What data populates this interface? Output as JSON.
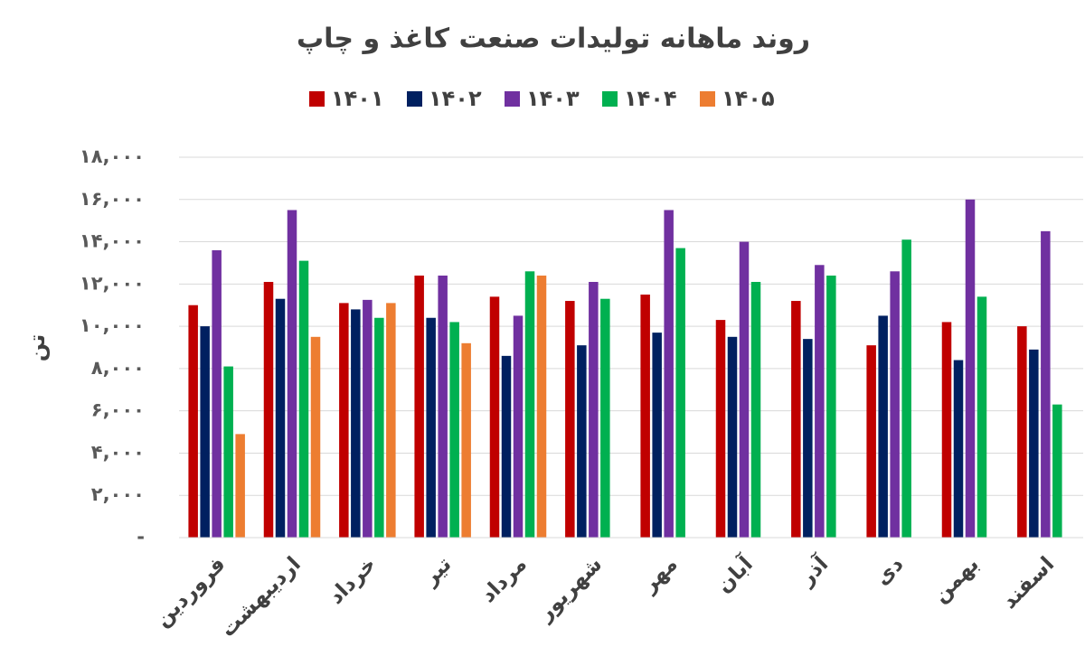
{
  "chart_data": {
    "type": "bar",
    "title": "روند ماهانه تولیدات صنعت کاغذ و چاپ",
    "y_label": "تن",
    "categories": [
      "فروردین",
      "اردیبهشت",
      "خرداد",
      "تیر",
      "مرداد",
      "شهریور",
      "مهر",
      "آبان",
      "آذر",
      "دی",
      "بهمن",
      "اسفند"
    ],
    "series": [
      {
        "name": "۱۴۰۱",
        "color": "#c00000",
        "values": [
          11000,
          12100,
          11100,
          12400,
          11400,
          11200,
          11500,
          10300,
          11200,
          9100,
          10200,
          10000
        ]
      },
      {
        "name": "۱۴۰۲",
        "color": "#002060",
        "values": [
          10000,
          11300,
          10800,
          10400,
          8600,
          9100,
          9700,
          9500,
          9400,
          10500,
          8400,
          8900
        ]
      },
      {
        "name": "۱۴۰۳",
        "color": "#7030a0",
        "values": [
          13600,
          15500,
          11250,
          12400,
          10500,
          12100,
          15500,
          14000,
          12900,
          12600,
          16000,
          14500
        ]
      },
      {
        "name": "۱۴۰۴",
        "color": "#00b050",
        "values": [
          8100,
          13100,
          10400,
          10200,
          12600,
          11300,
          13700,
          12100,
          12400,
          14100,
          11400,
          6300
        ]
      },
      {
        "name": "۱۴۰۵",
        "color": "#ed7d31",
        "values": [
          4900,
          9500,
          11100,
          9200,
          12400,
          null,
          null,
          null,
          null,
          null,
          null,
          null
        ]
      }
    ],
    "ylim": [
      0,
      18000
    ],
    "yticks": [
      {
        "value": 0,
        "label": "-"
      },
      {
        "value": 2000,
        "label": "۲,۰۰۰"
      },
      {
        "value": 4000,
        "label": "۴,۰۰۰"
      },
      {
        "value": 6000,
        "label": "۶,۰۰۰"
      },
      {
        "value": 8000,
        "label": "۸,۰۰۰"
      },
      {
        "value": 10000,
        "label": "۱۰,۰۰۰"
      },
      {
        "value": 12000,
        "label": "۱۲,۰۰۰"
      },
      {
        "value": 14000,
        "label": "۱۴,۰۰۰"
      },
      {
        "value": 16000,
        "label": "۱۶,۰۰۰"
      },
      {
        "value": 18000,
        "label": "۱۸,۰۰۰"
      }
    ],
    "grid": true
  }
}
